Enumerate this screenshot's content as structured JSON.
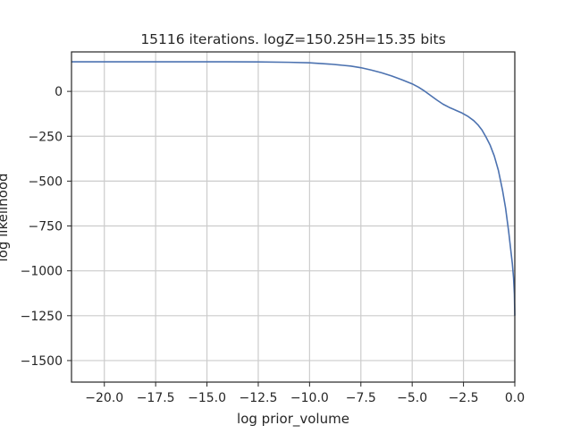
{
  "chart_data": {
    "type": "line",
    "title": "15116 iterations. logZ=150.25H=15.35 bits",
    "xlabel": "log prior_volume",
    "ylabel": "log likelihood",
    "xlim": [
      -21.6,
      0.0
    ],
    "ylim": [
      -1620,
      220
    ],
    "xticks": [
      -20.0,
      -17.5,
      -15.0,
      -12.5,
      -10.0,
      -7.5,
      -5.0,
      -2.5,
      0.0
    ],
    "xtick_labels": [
      "−20.0",
      "−17.5",
      "−15.0",
      "−12.5",
      "−10.0",
      "−7.5",
      "−5.0",
      "−2.5",
      "0.0"
    ],
    "yticks": [
      0,
      -250,
      -500,
      -750,
      -1000,
      -1250,
      -1500
    ],
    "ytick_labels": [
      "0",
      "−250",
      "−500",
      "−750",
      "−1000",
      "−1250",
      "−1500"
    ],
    "grid": true,
    "line_color": "#4c72b0",
    "series": [
      {
        "x": [
          -21.6,
          -20.0,
          -17.5,
          -15.0,
          -12.5,
          -11.0,
          -10.0,
          -9.0,
          -8.0,
          -7.5,
          -7.0,
          -6.5,
          -6.0,
          -5.5,
          -5.0,
          -4.7,
          -4.4,
          -4.1,
          -3.8,
          -3.5,
          -3.2,
          -2.9,
          -2.6,
          -2.3,
          -2.0,
          -1.8,
          -1.6,
          -1.4,
          -1.2,
          -1.0,
          -0.8,
          -0.6,
          -0.45,
          -0.3,
          -0.2,
          -0.12,
          -0.06,
          -0.02,
          0.0
        ],
        "y": [
          165,
          165,
          165,
          165,
          164,
          162,
          159,
          152,
          141,
          132,
          119,
          104,
          86,
          65,
          42,
          24,
          2,
          -23,
          -48,
          -71,
          -89,
          -104,
          -119,
          -138,
          -163,
          -186,
          -215,
          -255,
          -300,
          -360,
          -440,
          -550,
          -650,
          -780,
          -880,
          -960,
          -1040,
          -1130,
          -1250
        ]
      }
    ]
  }
}
